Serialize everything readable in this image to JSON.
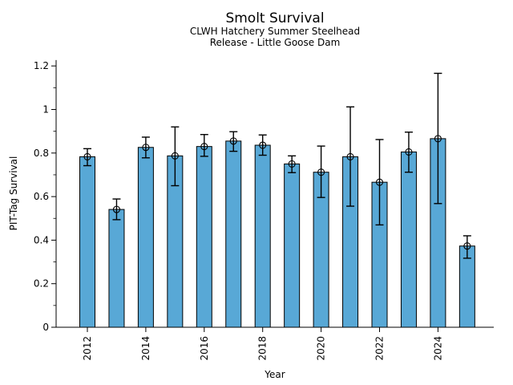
{
  "chart_data": {
    "type": "bar",
    "title": "Smolt Survival",
    "subtitle_line1": "CLWH Hatchery Summer Steelhead",
    "subtitle_line2": "Release - Little Goose Dam",
    "xlabel": "Year",
    "ylabel": "PIT-Tag Survival",
    "categories": [
      2012,
      2013,
      2014,
      2015,
      2016,
      2017,
      2018,
      2019,
      2020,
      2021,
      2022,
      2023,
      2024,
      2025
    ],
    "values": [
      0.783,
      0.541,
      0.826,
      0.787,
      0.83,
      0.855,
      0.836,
      0.75,
      0.712,
      0.783,
      0.666,
      0.805,
      0.866,
      0.373
    ],
    "error_low": [
      0.742,
      0.494,
      0.778,
      0.65,
      0.785,
      0.808,
      0.79,
      0.71,
      0.596,
      0.556,
      0.47,
      0.712,
      0.568,
      0.317
    ],
    "error_high": [
      0.82,
      0.589,
      0.873,
      0.92,
      0.885,
      0.898,
      0.883,
      0.787,
      0.832,
      1.012,
      0.862,
      0.896,
      1.166,
      0.42
    ],
    "ylim": [
      0,
      1.227
    ],
    "ytick_values": [
      0,
      0.2,
      0.4,
      0.6,
      0.8,
      1,
      1.2
    ],
    "ytick_labels": [
      "0",
      "0.2",
      "0.4",
      "0.6",
      "0.8",
      "1",
      "1.2"
    ],
    "ytick_minor_values": [
      0.1,
      0.3,
      0.5,
      0.7,
      0.9,
      1.1
    ],
    "xtick_years": [
      2012,
      2014,
      2016,
      2018,
      2020,
      2022,
      2024
    ],
    "marker": "open-circle",
    "grid": false,
    "legend": false,
    "bar_color": "#58a8d6",
    "bar_edge_color": "#000000",
    "errorbar_color": "#000000",
    "axis_color": "#000000",
    "background_color": "#ffffff"
  }
}
